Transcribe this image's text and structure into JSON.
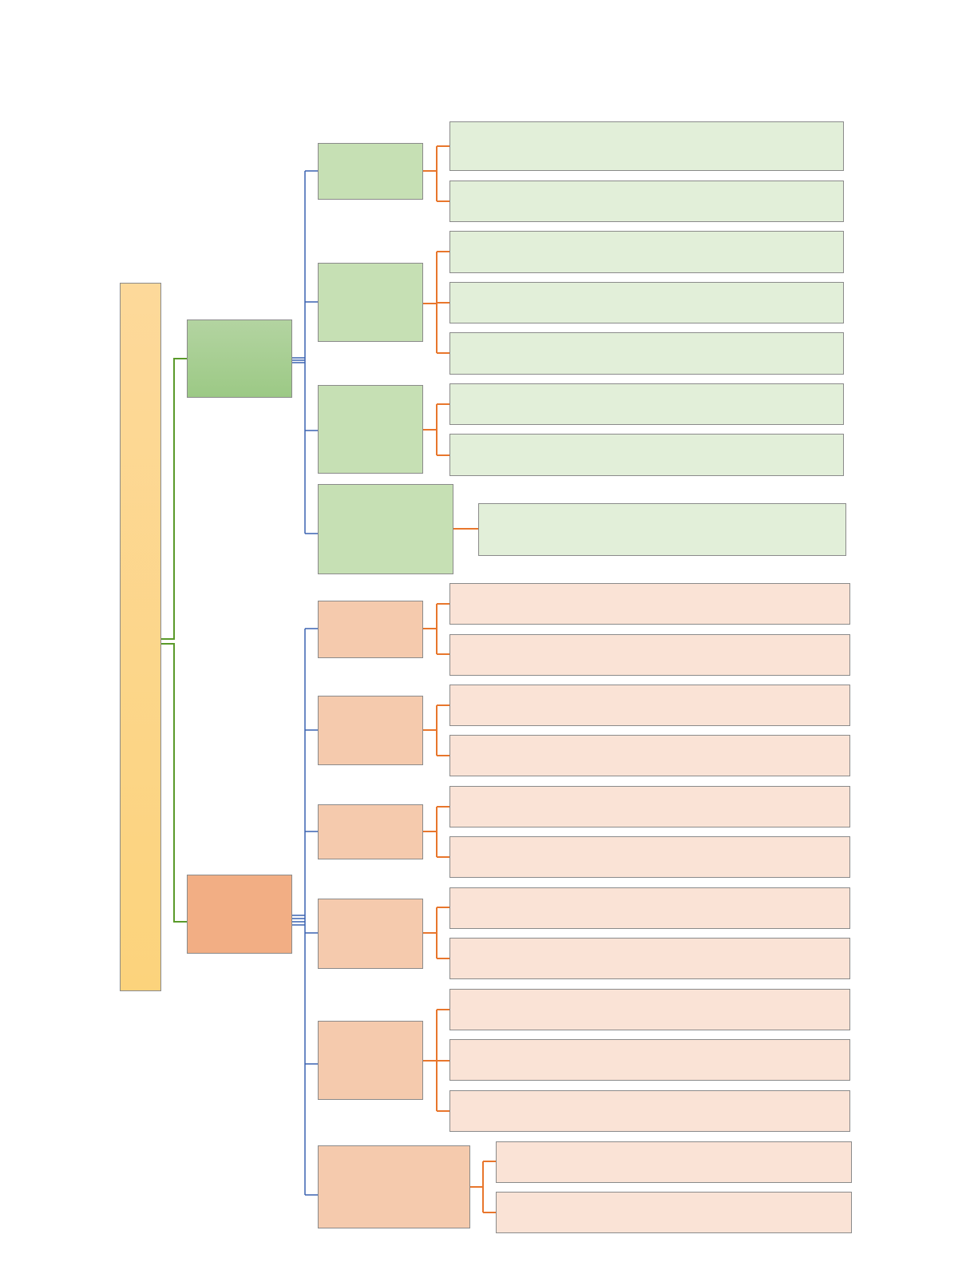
{
  "diagram": {
    "root": {
      "label": ""
    },
    "branch_green": {
      "label": "",
      "groups": [
        {
          "label": "",
          "leaves": [
            {
              "label": ""
            },
            {
              "label": ""
            }
          ]
        },
        {
          "label": "",
          "leaves": [
            {
              "label": ""
            },
            {
              "label": ""
            },
            {
              "label": ""
            }
          ]
        },
        {
          "label": "",
          "leaves": [
            {
              "label": ""
            },
            {
              "label": ""
            }
          ]
        },
        {
          "label": "",
          "leaves": [
            {
              "label": ""
            }
          ]
        }
      ]
    },
    "branch_orange": {
      "label": "",
      "groups": [
        {
          "label": "",
          "leaves": [
            {
              "label": ""
            },
            {
              "label": ""
            }
          ]
        },
        {
          "label": "",
          "leaves": [
            {
              "label": ""
            },
            {
              "label": ""
            }
          ]
        },
        {
          "label": "",
          "leaves": [
            {
              "label": ""
            },
            {
              "label": ""
            }
          ]
        },
        {
          "label": "",
          "leaves": [
            {
              "label": ""
            },
            {
              "label": ""
            }
          ]
        },
        {
          "label": "",
          "leaves": [
            {
              "label": ""
            },
            {
              "label": ""
            },
            {
              "label": ""
            }
          ]
        },
        {
          "label": "",
          "leaves": [
            {
              "label": ""
            },
            {
              "label": ""
            }
          ]
        }
      ]
    },
    "colors": {
      "root_fill": "#fdd68a",
      "green_branch_fill": "#a8cf92",
      "green_group_fill": "#c6e0b4",
      "green_leaf_fill": "#e2efd9",
      "orange_branch_fill": "#f2ae84",
      "orange_group_fill": "#f5caad",
      "orange_leaf_fill": "#fae3d6",
      "root_connector": "#5a9a2a",
      "branch_connector": "#3a62b0",
      "group_connector": "#e8762c"
    }
  }
}
